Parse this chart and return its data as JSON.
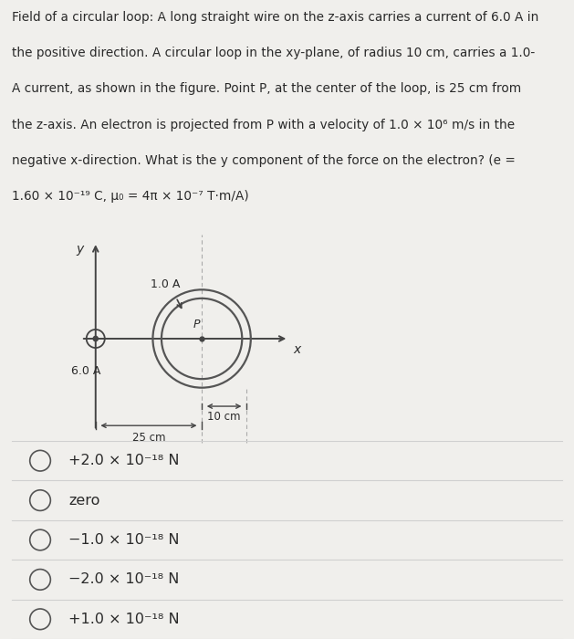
{
  "bg_color": "#f0efec",
  "title_lines": [
    "Field of a circular loop: A long straight wire on the z-axis carries a current of 6.0 A in",
    "the positive direction. A circular loop in the xy-plane, of radius 10 cm, carries a 1.0-",
    "A current, as shown in the figure. Point P, at the center of the loop, is 25 cm from",
    "the z-axis. An electron is projected from P with a velocity of 1.0 × 10⁶ m/s in the",
    "negative x-direction. What is the y component of the force on the electron? (e =",
    "1.60 × 10⁻¹⁹ C, μ₀ = 4π × 10⁻⁷ T·m/A)"
  ],
  "choices": [
    "+2.0 × 10⁻¹⁸ N",
    "zero",
    "−1.0 × 10⁻¹⁸ N",
    "−2.0 × 10⁻¹⁸ N",
    "+1.0 × 10⁻¹⁸ N"
  ],
  "divider_color": "#d0d0d0",
  "text_color": "#2a2a2a",
  "circle_color": "#555555",
  "axis_color": "#444444",
  "dot_color": "#444444",
  "title_fontsize": 9.8,
  "choice_fontsize": 11.5
}
